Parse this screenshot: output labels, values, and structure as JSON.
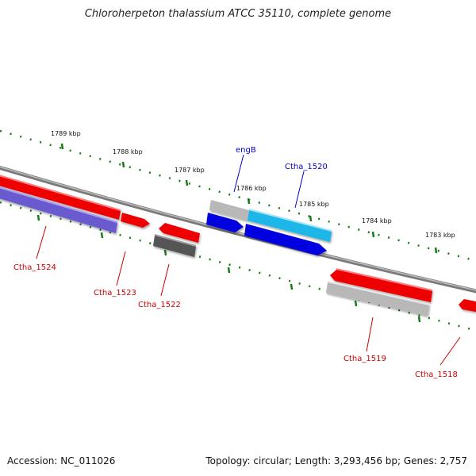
{
  "title": "Chloroherpeton thalassium ATCC 35110, complete genome",
  "footer": {
    "accession": "Accession: NC_011026",
    "summary": "Topology: circular; Length: 3,293,456 bp; Genes: 2,757"
  },
  "colors": {
    "backbone": "#808080",
    "ticks": "#1a7a1a",
    "gene_red": "#ee0000",
    "gene_blue": "#0000e0",
    "gene_cyan": "#1ab6e8",
    "gene_purple": "#6a5ad0",
    "gene_lightgray": "#b8b8b8",
    "gene_darkgray": "#555555",
    "label_red": "#cc0000",
    "label_blue": "#0000cc"
  },
  "kbp_labels": [
    "1789 kbp",
    "1788 kbp",
    "1787 kbp",
    "1786 kbp",
    "1785 kbp",
    "1784 kbp",
    "1783 kbp"
  ],
  "gene_labels": {
    "engB": "engB",
    "ctha_1520": "Ctha_1520",
    "ctha_1524": "Ctha_1524",
    "ctha_1523": "Ctha_1523",
    "ctha_1522": "Ctha_1522",
    "ctha_1519": "Ctha_1519",
    "ctha_1518": "Ctha_1518"
  }
}
